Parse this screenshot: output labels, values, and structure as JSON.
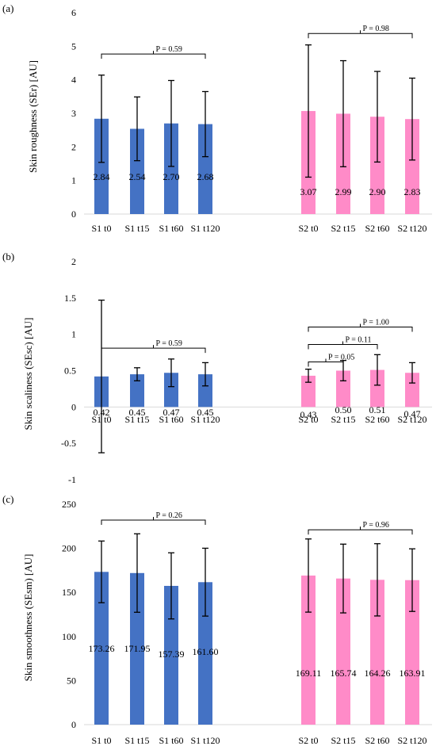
{
  "colors": {
    "s1": "#4472C4",
    "s2": "#FF8BC8",
    "error_bar": "#000000",
    "axis": "#D9D9D9"
  },
  "chart_data": [
    {
      "panel_label": "(a)",
      "type": "bar",
      "ylabel": "Skin roughness (SEr) [AU]",
      "ylim": [
        0,
        6
      ],
      "yticks": [
        0,
        1,
        2,
        3,
        4,
        5,
        6
      ],
      "groups": [
        {
          "name": "S1",
          "color": "#4472C4",
          "categories": [
            "S1 t0",
            "S1 t15",
            "S1 t60",
            "S1 t120"
          ],
          "values": [
            2.84,
            2.54,
            2.7,
            2.68
          ],
          "value_labels": [
            "2.84",
            "2.54",
            "2.70",
            "2.68"
          ],
          "error": [
            1.3,
            0.95,
            1.28,
            0.97
          ]
        },
        {
          "name": "S2",
          "color": "#FF8BC8",
          "categories": [
            "S2 t0",
            "S2 t15",
            "S2 t60",
            "S2 t120"
          ],
          "values": [
            3.07,
            2.99,
            2.9,
            2.83
          ],
          "value_labels": [
            "3.07",
            "2.99",
            "2.90",
            "2.83"
          ],
          "error": [
            1.97,
            1.58,
            1.35,
            1.22
          ]
        }
      ],
      "brackets": [
        {
          "from": [
            0,
            0
          ],
          "to": [
            0,
            3
          ],
          "y": 4.77,
          "label": "P = 0.59"
        },
        {
          "from": [
            1,
            0
          ],
          "to": [
            1,
            3
          ],
          "y": 5.38,
          "label": "P = 0.98"
        }
      ]
    },
    {
      "panel_label": "(b)",
      "type": "bar",
      "ylabel": "Skin scaliness (SEsc) [AU]",
      "ylim": [
        -1,
        2
      ],
      "yticks": [
        -1,
        -0.5,
        0,
        0.5,
        1,
        1.5,
        2
      ],
      "groups": [
        {
          "name": "S1",
          "color": "#4472C4",
          "categories": [
            "S1 t0",
            "S1 t15",
            "S1 t60",
            "S1 t120"
          ],
          "values": [
            0.42,
            0.45,
            0.47,
            0.45
          ],
          "value_labels": [
            "0.42",
            "0.45",
            "0.47",
            "0.45"
          ],
          "error": [
            1.05,
            0.09,
            0.19,
            0.16
          ]
        },
        {
          "name": "S2",
          "color": "#FF8BC8",
          "categories": [
            "S2 t0",
            "S2 t15",
            "S2 t60",
            "S2 t120"
          ],
          "values": [
            0.43,
            0.5,
            0.51,
            0.47
          ],
          "value_labels": [
            "0.43",
            "0.50",
            "0.51",
            "0.47"
          ],
          "error": [
            0.09,
            0.14,
            0.21,
            0.14
          ]
        }
      ],
      "brackets": [
        {
          "from": [
            0,
            0
          ],
          "to": [
            0,
            3
          ],
          "y": 0.81,
          "label": "P = 0.59"
        },
        {
          "from": [
            1,
            0
          ],
          "to": [
            1,
            1
          ],
          "y": 0.62,
          "label": "P = 0.05"
        },
        {
          "from": [
            1,
            0
          ],
          "to": [
            1,
            2
          ],
          "y": 0.86,
          "label": "P = 0.11"
        },
        {
          "from": [
            1,
            0
          ],
          "to": [
            1,
            3
          ],
          "y": 1.1,
          "label": "P = 1.00"
        }
      ]
    },
    {
      "panel_label": "(c)",
      "type": "bar",
      "ylabel": "Skin smoothness (SEsm) [AU]",
      "ylim": [
        0,
        250
      ],
      "yticks": [
        0,
        50,
        100,
        150,
        200,
        250
      ],
      "groups": [
        {
          "name": "S1",
          "color": "#4472C4",
          "categories": [
            "S1 t0",
            "S1 t15",
            "S1 t60",
            "S1 t120"
          ],
          "values": [
            173.26,
            171.95,
            157.39,
            161.6
          ],
          "value_labels": [
            "173.26",
            "171.95",
            "157.39",
            "161.60"
          ],
          "error": [
            35,
            44.5,
            37.5,
            38.5
          ]
        },
        {
          "name": "S2",
          "color": "#FF8BC8",
          "categories": [
            "S2 t0",
            "S2 t15",
            "S2 t60",
            "S2 t120"
          ],
          "values": [
            169.11,
            165.74,
            164.26,
            163.91
          ],
          "value_labels": [
            "169.11",
            "165.74",
            "164.26",
            "163.91"
          ],
          "error": [
            41.5,
            39,
            41,
            35.5
          ]
        }
      ],
      "brackets": [
        {
          "from": [
            0,
            0
          ],
          "to": [
            0,
            3
          ],
          "y": 232,
          "label": "P = 0.26"
        },
        {
          "from": [
            1,
            0
          ],
          "to": [
            1,
            3
          ],
          "y": 221,
          "label": "P = 0.96"
        }
      ]
    }
  ]
}
